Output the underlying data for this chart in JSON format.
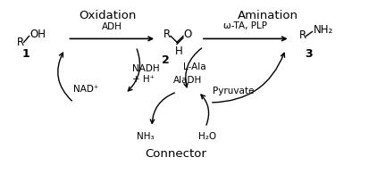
{
  "background": "#ffffff",
  "text_color": "#000000",
  "oxidation_label": "Oxidation",
  "amination_label": "Amination",
  "adh_label": "ADH",
  "ota_label": "ω-TA, PLP",
  "aladh_label": "AlaDH",
  "connector_label": "Connector",
  "nadh": "NADH\n+ H⁺",
  "nad": "NAD⁺",
  "lala": "L-Ala",
  "pyruvate": "Pyruvate",
  "nh3": "NH₃",
  "h2o": "H₂O",
  "fig_width": 4.13,
  "fig_height": 1.95
}
